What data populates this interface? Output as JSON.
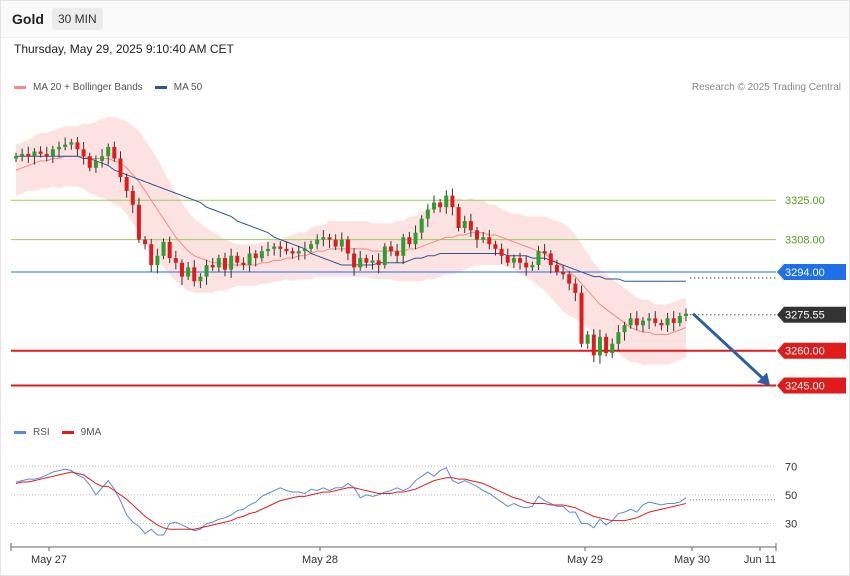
{
  "header": {
    "instrument": "Gold",
    "timeframe": "30 MIN",
    "datetime": "Thursday, May 29, 2025 9:10:40 AM CET"
  },
  "legend_main": [
    {
      "label": "MA 20 + Bollinger Bands",
      "color": "#f28b82"
    },
    {
      "label": "MA 50",
      "color": "#2d5597"
    }
  ],
  "legend_rsi": [
    {
      "label": "RSI",
      "color": "#5b8ad8"
    },
    {
      "label": "9MA",
      "color": "#e01b1b"
    }
  ],
  "copyright": "Research © 2025 Trading Central",
  "colors": {
    "bull": "#2e9e30",
    "bear": "#e01b1b",
    "band": "#fde2e2",
    "ma20": "#f28b82",
    "ma50": "#2d5597",
    "support": "#e01b1b",
    "pivot": "#1f6fe8",
    "resistance": "#9acd5a",
    "arrow": "#2d5fa3",
    "last": "#333333"
  },
  "chart_data": [
    {
      "type": "candlestick",
      "x_labels": [
        "May 27",
        "May 28",
        "May 29",
        "May 30",
        "Jun 11"
      ],
      "ylim": [
        3237,
        3351
      ],
      "levels": [
        {
          "price": 3325.0,
          "label": "3325.00",
          "kind": "resistance"
        },
        {
          "price": 3308.0,
          "label": "3308.00",
          "kind": "resistance"
        },
        {
          "price": 3294.0,
          "label": "3294.00",
          "kind": "pivot"
        },
        {
          "price": 3275.55,
          "label": "3275.55",
          "kind": "last"
        },
        {
          "price": 3260.0,
          "label": "3260.00",
          "kind": "support"
        },
        {
          "price": 3245.0,
          "label": "3245.00",
          "kind": "support"
        }
      ],
      "forecast_arrow": {
        "from": 3276,
        "to": 3245
      },
      "close": [
        3344,
        3345,
        3344,
        3346,
        3345,
        3344,
        3347,
        3348,
        3349,
        3350,
        3347,
        3344,
        3339,
        3342,
        3344,
        3348,
        3343,
        3335,
        3329,
        3323,
        3308,
        3306,
        3297,
        3301,
        3307,
        3300,
        3298,
        3292,
        3296,
        3290,
        3292,
        3297,
        3296,
        3300,
        3295,
        3301,
        3298,
        3297,
        3302,
        3300,
        3303,
        3304,
        3305,
        3304,
        3303,
        3302,
        3303,
        3304,
        3306,
        3308,
        3309,
        3308,
        3305,
        3308,
        3302,
        3296,
        3300,
        3298,
        3299,
        3297,
        3305,
        3303,
        3301,
        3309,
        3306,
        3311,
        3317,
        3321,
        3324,
        3322,
        3327,
        3322,
        3313,
        3316,
        3312,
        3308,
        3309,
        3306,
        3304,
        3301,
        3298,
        3300,
        3298,
        3296,
        3297,
        3303,
        3302,
        3297,
        3294,
        3293,
        3289,
        3285,
        3263,
        3267,
        3258,
        3266,
        3259,
        3263,
        3268,
        3271,
        3274,
        3271,
        3273,
        3274,
        3272,
        3271,
        3274,
        3272,
        3275,
        3276
      ],
      "ma20": [
        3338,
        3339,
        3340,
        3341,
        3342,
        3342,
        3343,
        3343,
        3344,
        3344,
        3344,
        3344,
        3343,
        3343,
        3343,
        3343,
        3342,
        3341,
        3339,
        3336,
        3333,
        3329,
        3325,
        3321,
        3317,
        3313,
        3309,
        3306,
        3303,
        3301,
        3300,
        3299,
        3298,
        3298,
        3297,
        3297,
        3297,
        3297,
        3297,
        3297,
        3298,
        3298,
        3299,
        3299,
        3300,
        3300,
        3301,
        3301,
        3302,
        3303,
        3303,
        3304,
        3304,
        3304,
        3304,
        3304,
        3304,
        3304,
        3303,
        3303,
        3303,
        3303,
        3303,
        3303,
        3304,
        3304,
        3305,
        3306,
        3307,
        3308,
        3309,
        3309,
        3310,
        3310,
        3311,
        3311,
        3311,
        3310,
        3310,
        3309,
        3308,
        3307,
        3306,
        3305,
        3304,
        3303,
        3302,
        3300,
        3298,
        3296,
        3294,
        3292,
        3289,
        3286,
        3283,
        3280,
        3278,
        3276,
        3274,
        3272,
        3270,
        3269,
        3268,
        3268,
        3267,
        3267,
        3267,
        3268,
        3269,
        3270
      ],
      "ma50": [
        3344,
        3344,
        3344,
        3344,
        3344,
        3344,
        3344,
        3344,
        3344,
        3344,
        3344,
        3343,
        3343,
        3342,
        3341,
        3340,
        3338,
        3337,
        3336,
        3335,
        3334,
        3333,
        3332,
        3331,
        3330,
        3329,
        3328,
        3327,
        3326,
        3325,
        3324,
        3322,
        3321,
        3320,
        3319,
        3318,
        3316,
        3315,
        3314,
        3313,
        3312,
        3311,
        3309,
        3308,
        3307,
        3306,
        3305,
        3304,
        3302,
        3301,
        3300,
        3299,
        3298,
        3297,
        3297,
        3297,
        3297,
        3297,
        3297,
        3298,
        3298,
        3298,
        3298,
        3298,
        3299,
        3300,
        3300,
        3301,
        3301,
        3302,
        3302,
        3302,
        3302,
        3302,
        3302,
        3302,
        3302,
        3302,
        3302,
        3302,
        3301,
        3301,
        3301,
        3301,
        3300,
        3300,
        3300,
        3299,
        3298,
        3297,
        3296,
        3295,
        3294,
        3293,
        3292,
        3292,
        3291,
        3291,
        3291,
        3290,
        3290,
        3290,
        3290,
        3290,
        3290,
        3290,
        3290,
        3290,
        3290,
        3290
      ],
      "bb_width": [
        11,
        11,
        11,
        12,
        12,
        12,
        12,
        13,
        13,
        13,
        13,
        14,
        15,
        16,
        17,
        18,
        19,
        19,
        20,
        21,
        22,
        22,
        22,
        22,
        21,
        20,
        19,
        18,
        17,
        16,
        15,
        14,
        13,
        12,
        11,
        10,
        9,
        9,
        9,
        9,
        9,
        9,
        9,
        9,
        9,
        10,
        10,
        10,
        11,
        11,
        11,
        12,
        12,
        12,
        12,
        12,
        12,
        12,
        12,
        12,
        12,
        12,
        13,
        13,
        14,
        14,
        15,
        15,
        16,
        16,
        16,
        16,
        16,
        15,
        15,
        14,
        14,
        13,
        13,
        12,
        12,
        12,
        13,
        13,
        14,
        15,
        16,
        17,
        18,
        19,
        19,
        18,
        17,
        16,
        15,
        15,
        15,
        15,
        15,
        15,
        15,
        14,
        14,
        14,
        13,
        13,
        13,
        13,
        13,
        13
      ]
    },
    {
      "type": "line",
      "name": "RSI panel",
      "yticks": [
        70,
        50,
        30
      ],
      "ylim": [
        15,
        80
      ],
      "rsi": [
        59,
        60,
        61,
        61,
        62,
        64,
        66,
        67,
        68,
        67,
        64,
        62,
        57,
        50,
        55,
        60,
        54,
        46,
        36,
        31,
        28,
        23,
        26,
        22,
        22,
        30,
        31,
        29,
        27,
        25,
        26,
        30,
        31,
        33,
        34,
        36,
        39,
        40,
        43,
        45,
        49,
        51,
        53,
        55,
        53,
        52,
        52,
        51,
        54,
        53,
        55,
        53,
        55,
        55,
        58,
        55,
        48,
        50,
        49,
        50,
        52,
        53,
        55,
        53,
        55,
        60,
        63,
        66,
        63,
        67,
        69,
        60,
        58,
        60,
        58,
        56,
        53,
        51,
        48,
        45,
        42,
        44,
        42,
        41,
        42,
        49,
        46,
        44,
        42,
        42,
        38,
        38,
        30,
        30,
        27,
        33,
        29,
        32,
        37,
        38,
        40,
        38,
        43,
        45,
        44,
        43,
        44,
        44,
        45,
        48
      ],
      "ma9": [
        58,
        59,
        59,
        60,
        61,
        62,
        63,
        64,
        65,
        66,
        65,
        64,
        61,
        58,
        56,
        56,
        53,
        50,
        47,
        43,
        39,
        35,
        32,
        29,
        27,
        26,
        26,
        26,
        26,
        26,
        27,
        28,
        29,
        30,
        31,
        32,
        34,
        35,
        37,
        38,
        40,
        42,
        44,
        46,
        47,
        48,
        49,
        49,
        50,
        51,
        52,
        52,
        53,
        54,
        55,
        55,
        54,
        53,
        52,
        51,
        51,
        51,
        52,
        52,
        53,
        54,
        56,
        58,
        60,
        61,
        62,
        62,
        61,
        61,
        60,
        59,
        58,
        56,
        54,
        52,
        50,
        48,
        47,
        45,
        44,
        44,
        44,
        43,
        43,
        43,
        42,
        41,
        39,
        37,
        35,
        34,
        33,
        32,
        32,
        32,
        33,
        34,
        36,
        38,
        39,
        40,
        41,
        42,
        43,
        44
      ]
    }
  ]
}
